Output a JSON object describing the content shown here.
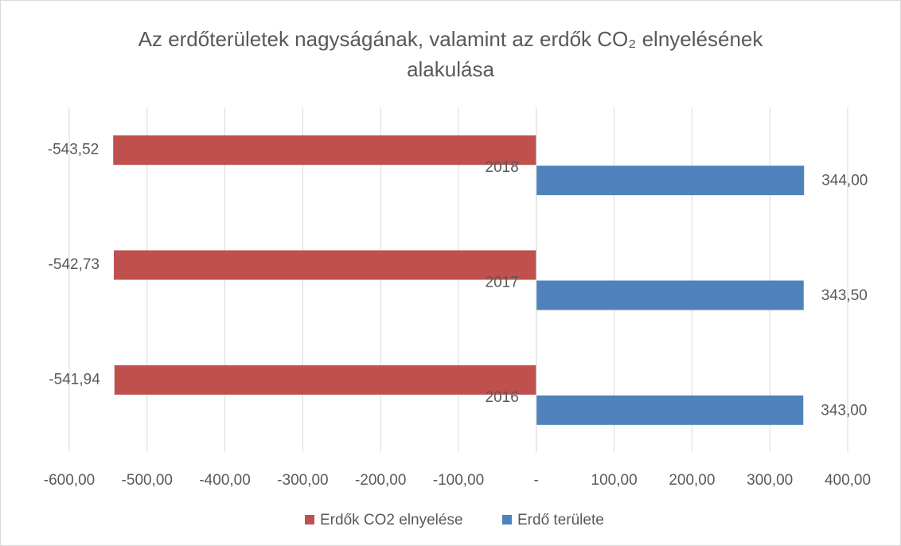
{
  "chart_data": {
    "type": "bar",
    "orientation": "horizontal",
    "title": "Az erdőterületek nagyságának, valamint az erdők CO₂ elnyelésének alakulása",
    "categories": [
      "2016",
      "2017",
      "2018"
    ],
    "series": [
      {
        "name": "Erdők CO2 elnyelése",
        "color": "#c0504d",
        "values": [
          -541.94,
          -542.73,
          -543.52
        ],
        "value_labels": [
          "-541,94",
          "-542,73",
          "-543,52"
        ]
      },
      {
        "name": "Erdő területe",
        "color": "#4f81bd",
        "values": [
          343,
          343.5,
          344
        ],
        "value_labels": [
          "343,00",
          "343,50",
          "344,00"
        ]
      }
    ],
    "xlim": [
      -600,
      400
    ],
    "xticks": [
      {
        "value": -600,
        "label": "-600,00"
      },
      {
        "value": -500,
        "label": "-500,00"
      },
      {
        "value": -400,
        "label": "-400,00"
      },
      {
        "value": -300,
        "label": "-300,00"
      },
      {
        "value": -200,
        "label": "-200,00"
      },
      {
        "value": -100,
        "label": "-100,00"
      },
      {
        "value": 0,
        "label": "-"
      },
      {
        "value": 100,
        "label": "100,00"
      },
      {
        "value": 200,
        "label": "200,00"
      },
      {
        "value": 300,
        "label": "300,00"
      },
      {
        "value": 400,
        "label": "400,00"
      }
    ],
    "grid": true,
    "legend": "bottom"
  }
}
